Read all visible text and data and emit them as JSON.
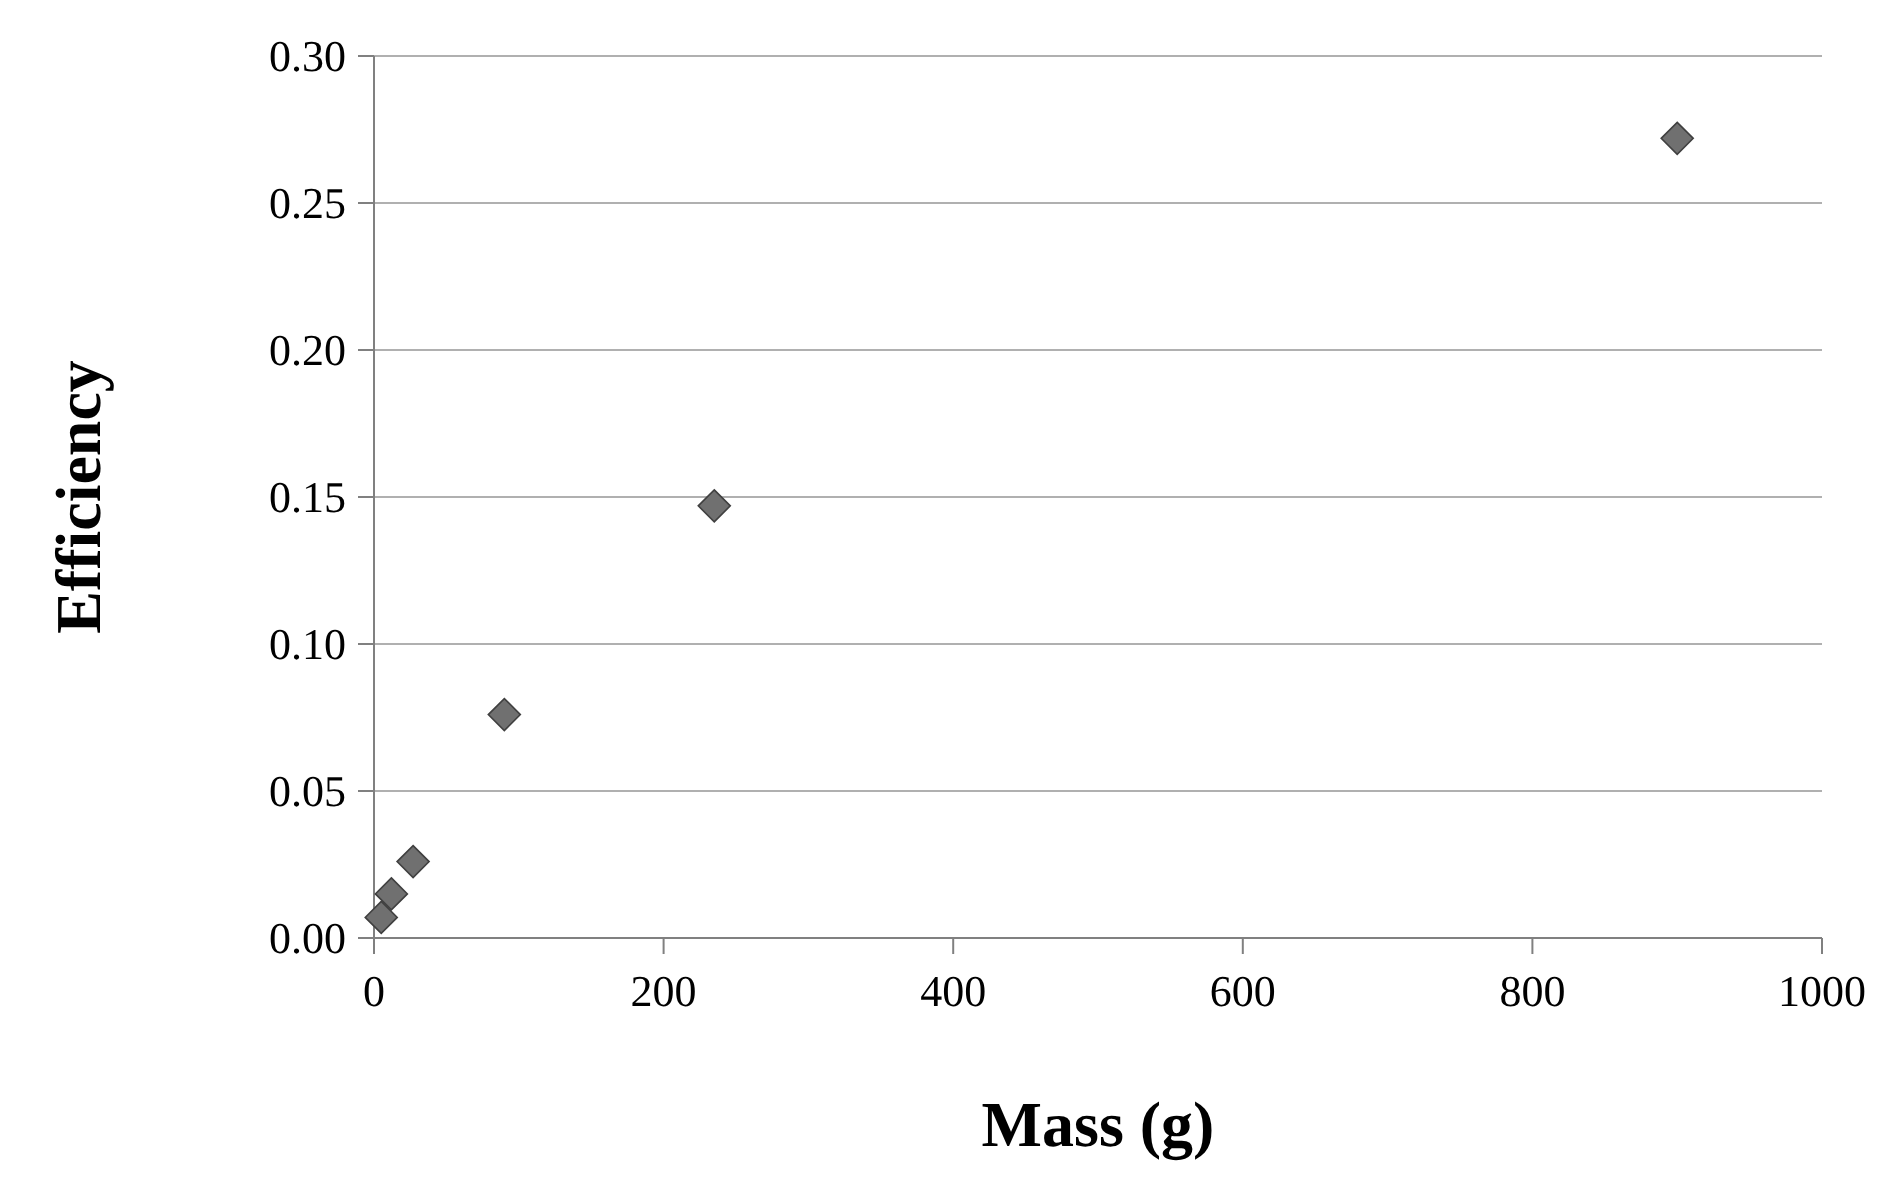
{
  "chart_data": {
    "type": "scatter",
    "xlabel": "Mass (g)",
    "ylabel": "Efficiency",
    "x": [
      5,
      12,
      27,
      90,
      235,
      900
    ],
    "series": [
      {
        "color": "#707070",
        "values": [
          0.007,
          0.015,
          0.026,
          0.076,
          0.147,
          0.272
        ]
      }
    ],
    "xlim": [
      0,
      1000
    ],
    "xticks": [
      0,
      200,
      400,
      600,
      800,
      1000
    ],
    "ylim": [
      0,
      0.3
    ],
    "yticks": [
      {
        "value": 0,
        "label": "0.00"
      },
      {
        "value": 0.05,
        "label": "0.05"
      },
      {
        "value": 0.1,
        "label": "0.10"
      },
      {
        "value": 0.15,
        "label": "0.15"
      },
      {
        "value": 0.2,
        "label": "0.20"
      },
      {
        "value": 0.25,
        "label": "0.25"
      },
      {
        "value": 0.3,
        "label": "0.30"
      }
    ],
    "grid": "y",
    "marker": "diamond"
  }
}
